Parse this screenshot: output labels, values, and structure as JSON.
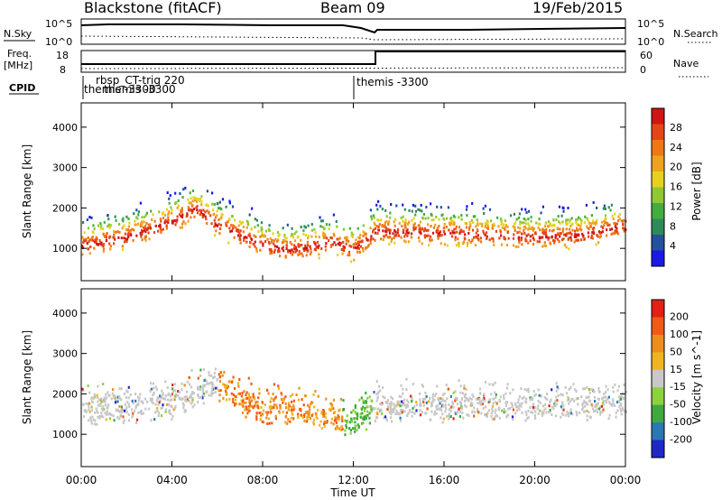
{
  "header": {
    "site": "Blackstone (fitACF)",
    "beam": "Beam 09",
    "date": "19/Feb/2015"
  },
  "top_panel": {
    "left_label": "N.Sky",
    "right_label": "N.Search",
    "left_ticks": [
      "10^5",
      "10^0"
    ],
    "right_ticks": [
      "10^5",
      "10^0"
    ]
  },
  "freq_panel": {
    "left_label_1": "Freq.",
    "left_label_2": "[MHz]",
    "right_label": "Nave",
    "left_ticks": [
      "18",
      "8"
    ],
    "right_ticks": [
      "60",
      "0"
    ]
  },
  "cpid": {
    "label": "CPID",
    "entries": [
      {
        "text": "rbsp_CT-trig 220",
        "hour": 0.8
      },
      {
        "text": "themis -3300",
        "hour": 0.25
      },
      {
        "text": "themis -3300",
        "hour": 1.0
      },
      {
        "text": "themis -3300",
        "hour": 12.0
      }
    ]
  },
  "chart_data": [
    {
      "type": "heatmap",
      "title": "Power",
      "ylabel": "Slant Range [km]",
      "xlabel": "Time UT",
      "xlim": [
        0,
        24
      ],
      "ylim": [
        200,
        4600
      ],
      "x_ticks": [
        "00:00",
        "04:00",
        "08:00",
        "12:00",
        "16:00",
        "20:00",
        "00:00"
      ],
      "y_ticks": [
        1000,
        2000,
        3000,
        4000
      ],
      "colorbar": {
        "label": "Power [dB]",
        "ticks": [
          4,
          8,
          12,
          16,
          20,
          24,
          28
        ],
        "colors": [
          "#1a1ae6",
          "#2450a0",
          "#2e8a5a",
          "#3fae3f",
          "#8ec832",
          "#e6d21e",
          "#f0a21e",
          "#f07814",
          "#e64614",
          "#d21414"
        ]
      },
      "band_center_km": [
        [
          0,
          1100
        ],
        [
          2,
          1300
        ],
        [
          4,
          1700
        ],
        [
          5,
          2000
        ],
        [
          6,
          1600
        ],
        [
          8,
          1100
        ],
        [
          9,
          1000
        ],
        [
          10,
          1050
        ],
        [
          11,
          1200
        ],
        [
          12,
          1000
        ],
        [
          13,
          1450
        ],
        [
          16,
          1400
        ],
        [
          18,
          1350
        ],
        [
          20,
          1300
        ],
        [
          22,
          1350
        ],
        [
          24,
          1600
        ]
      ]
    },
    {
      "type": "heatmap",
      "title": "Velocity",
      "ylabel": "Slant Range [km]",
      "xlabel": "Time UT",
      "xlim": [
        0,
        24
      ],
      "ylim": [
        200,
        4600
      ],
      "x_ticks": [
        "00:00",
        "04:00",
        "08:00",
        "12:00",
        "16:00",
        "20:00",
        "00:00"
      ],
      "y_ticks": [
        1000,
        2000,
        3000,
        4000
      ],
      "colorbar": {
        "label": "Velocity [m s^-1]",
        "ticks": [
          200,
          100,
          50,
          15,
          -15,
          -50,
          -100,
          -200
        ],
        "colors": [
          "#1e28c8",
          "#2878b4",
          "#3caa3c",
          "#8cd23c",
          "#c8c8c8",
          "#f0b41e",
          "#f08c1e",
          "#f05a14",
          "#e61e14"
        ]
      },
      "band_center_km": [
        [
          0,
          1500
        ],
        [
          4,
          1700
        ],
        [
          6,
          2200
        ],
        [
          8,
          1500
        ],
        [
          10,
          1500
        ],
        [
          12,
          1200
        ],
        [
          13,
          1600
        ],
        [
          24,
          1700
        ]
      ]
    }
  ]
}
